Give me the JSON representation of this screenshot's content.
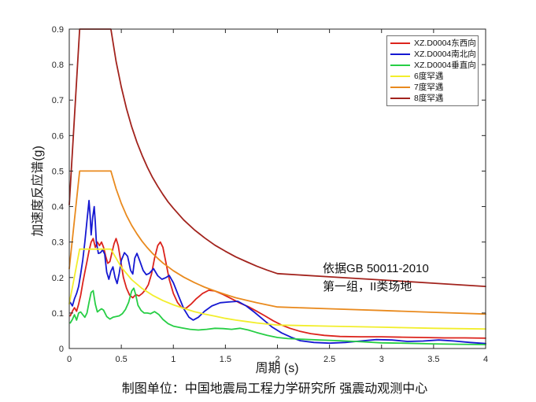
{
  "chart_data": {
    "type": "line",
    "title": "",
    "xlabel": "周期 (s)",
    "ylabel": "加速度反应谱(g)",
    "caption": "制图单位：中国地震局工程力学研究所 强震动观测中心",
    "annotation_line1": "依据GB 50011-2010",
    "annotation_line2": "第一组，II类场地",
    "xlim": [
      0,
      4
    ],
    "ylim": [
      0,
      0.9
    ],
    "xticks": [
      0,
      0.5,
      1,
      1.5,
      2,
      2.5,
      3,
      3.5,
      4
    ],
    "yticks": [
      0,
      0.1,
      0.2,
      0.3,
      0.4,
      0.5,
      0.6,
      0.7,
      0.8,
      0.9
    ],
    "grid": false,
    "legend_position": "upper-right",
    "axis_color": "#262626",
    "series": [
      {
        "name": "XZ.D0004东西向",
        "color": "#dc231c",
        "points": [
          [
            0.01,
            0.092
          ],
          [
            0.03,
            0.105
          ],
          [
            0.05,
            0.115
          ],
          [
            0.07,
            0.105
          ],
          [
            0.09,
            0.125
          ],
          [
            0.11,
            0.15
          ],
          [
            0.13,
            0.185
          ],
          [
            0.15,
            0.215
          ],
          [
            0.17,
            0.245
          ],
          [
            0.19,
            0.275
          ],
          [
            0.21,
            0.3
          ],
          [
            0.23,
            0.31
          ],
          [
            0.25,
            0.285
          ],
          [
            0.27,
            0.3
          ],
          [
            0.29,
            0.29
          ],
          [
            0.31,
            0.3
          ],
          [
            0.33,
            0.285
          ],
          [
            0.35,
            0.26
          ],
          [
            0.37,
            0.24
          ],
          [
            0.39,
            0.245
          ],
          [
            0.41,
            0.27
          ],
          [
            0.43,
            0.295
          ],
          [
            0.45,
            0.31
          ],
          [
            0.47,
            0.29
          ],
          [
            0.49,
            0.255
          ],
          [
            0.52,
            0.2
          ],
          [
            0.55,
            0.17
          ],
          [
            0.58,
            0.15
          ],
          [
            0.61,
            0.143
          ],
          [
            0.64,
            0.152
          ],
          [
            0.67,
            0.148
          ],
          [
            0.7,
            0.155
          ],
          [
            0.73,
            0.165
          ],
          [
            0.76,
            0.18
          ],
          [
            0.79,
            0.21
          ],
          [
            0.82,
            0.255
          ],
          [
            0.85,
            0.29
          ],
          [
            0.875,
            0.3
          ],
          [
            0.9,
            0.285
          ],
          [
            0.93,
            0.24
          ],
          [
            0.96,
            0.195
          ],
          [
            1.0,
            0.155
          ],
          [
            1.04,
            0.13
          ],
          [
            1.08,
            0.115
          ],
          [
            1.12,
            0.113
          ],
          [
            1.17,
            0.125
          ],
          [
            1.22,
            0.14
          ],
          [
            1.28,
            0.155
          ],
          [
            1.34,
            0.164
          ],
          [
            1.4,
            0.162
          ],
          [
            1.48,
            0.152
          ],
          [
            1.56,
            0.14
          ],
          [
            1.64,
            0.128
          ],
          [
            1.72,
            0.118
          ],
          [
            1.8,
            0.105
          ],
          [
            1.88,
            0.092
          ],
          [
            1.96,
            0.078
          ],
          [
            2.04,
            0.066
          ],
          [
            2.12,
            0.057
          ],
          [
            2.22,
            0.048
          ],
          [
            2.32,
            0.042
          ],
          [
            2.45,
            0.037
          ],
          [
            2.6,
            0.034
          ],
          [
            2.8,
            0.033
          ],
          [
            3.0,
            0.033
          ],
          [
            3.2,
            0.032
          ],
          [
            3.4,
            0.031
          ],
          [
            3.6,
            0.03
          ],
          [
            3.8,
            0.03
          ],
          [
            4.0,
            0.029
          ]
        ]
      },
      {
        "name": "XZ.D0004南北向",
        "color": "#1518d2",
        "points": [
          [
            0.01,
            0.13
          ],
          [
            0.03,
            0.12
          ],
          [
            0.05,
            0.14
          ],
          [
            0.07,
            0.155
          ],
          [
            0.09,
            0.175
          ],
          [
            0.11,
            0.21
          ],
          [
            0.13,
            0.25
          ],
          [
            0.15,
            0.3
          ],
          [
            0.17,
            0.36
          ],
          [
            0.19,
            0.417
          ],
          [
            0.2,
            0.375
          ],
          [
            0.21,
            0.32
          ],
          [
            0.225,
            0.37
          ],
          [
            0.24,
            0.4
          ],
          [
            0.25,
            0.355
          ],
          [
            0.26,
            0.3
          ],
          [
            0.28,
            0.268
          ],
          [
            0.3,
            0.27
          ],
          [
            0.32,
            0.278
          ],
          [
            0.34,
            0.266
          ],
          [
            0.36,
            0.215
          ],
          [
            0.38,
            0.195
          ],
          [
            0.4,
            0.218
          ],
          [
            0.42,
            0.23
          ],
          [
            0.44,
            0.2
          ],
          [
            0.46,
            0.183
          ],
          [
            0.48,
            0.212
          ],
          [
            0.5,
            0.248
          ],
          [
            0.53,
            0.27
          ],
          [
            0.56,
            0.26
          ],
          [
            0.59,
            0.22
          ],
          [
            0.61,
            0.21
          ],
          [
            0.63,
            0.255
          ],
          [
            0.65,
            0.268
          ],
          [
            0.68,
            0.245
          ],
          [
            0.71,
            0.22
          ],
          [
            0.74,
            0.208
          ],
          [
            0.77,
            0.212
          ],
          [
            0.81,
            0.225
          ],
          [
            0.85,
            0.205
          ],
          [
            0.89,
            0.195
          ],
          [
            0.93,
            0.2
          ],
          [
            0.96,
            0.206
          ],
          [
            1.0,
            0.185
          ],
          [
            1.05,
            0.148
          ],
          [
            1.1,
            0.112
          ],
          [
            1.15,
            0.088
          ],
          [
            1.19,
            0.08
          ],
          [
            1.24,
            0.088
          ],
          [
            1.3,
            0.105
          ],
          [
            1.37,
            0.12
          ],
          [
            1.45,
            0.129
          ],
          [
            1.53,
            0.131
          ],
          [
            1.62,
            0.133
          ],
          [
            1.7,
            0.12
          ],
          [
            1.78,
            0.102
          ],
          [
            1.87,
            0.08
          ],
          [
            1.95,
            0.06
          ],
          [
            2.04,
            0.044
          ],
          [
            2.13,
            0.032
          ],
          [
            2.22,
            0.022
          ],
          [
            2.35,
            0.017
          ],
          [
            2.5,
            0.015
          ],
          [
            2.65,
            0.017
          ],
          [
            2.8,
            0.021
          ],
          [
            2.95,
            0.025
          ],
          [
            3.1,
            0.024
          ],
          [
            3.25,
            0.02
          ],
          [
            3.4,
            0.021
          ],
          [
            3.55,
            0.024
          ],
          [
            3.7,
            0.021
          ],
          [
            3.85,
            0.017
          ],
          [
            4.0,
            0.014
          ]
        ]
      },
      {
        "name": "XZ.D0004垂直向",
        "color": "#27ce45",
        "points": [
          [
            0.01,
            0.072
          ],
          [
            0.03,
            0.082
          ],
          [
            0.05,
            0.095
          ],
          [
            0.07,
            0.08
          ],
          [
            0.09,
            0.1
          ],
          [
            0.11,
            0.103
          ],
          [
            0.13,
            0.095
          ],
          [
            0.15,
            0.088
          ],
          [
            0.17,
            0.1
          ],
          [
            0.19,
            0.13
          ],
          [
            0.21,
            0.158
          ],
          [
            0.23,
            0.163
          ],
          [
            0.25,
            0.125
          ],
          [
            0.27,
            0.103
          ],
          [
            0.29,
            0.108
          ],
          [
            0.31,
            0.112
          ],
          [
            0.33,
            0.108
          ],
          [
            0.36,
            0.09
          ],
          [
            0.39,
            0.083
          ],
          [
            0.42,
            0.088
          ],
          [
            0.45,
            0.09
          ],
          [
            0.48,
            0.092
          ],
          [
            0.51,
            0.098
          ],
          [
            0.54,
            0.11
          ],
          [
            0.57,
            0.13
          ],
          [
            0.6,
            0.162
          ],
          [
            0.62,
            0.17
          ],
          [
            0.64,
            0.15
          ],
          [
            0.66,
            0.122
          ],
          [
            0.69,
            0.107
          ],
          [
            0.72,
            0.1
          ],
          [
            0.75,
            0.1
          ],
          [
            0.78,
            0.098
          ],
          [
            0.82,
            0.104
          ],
          [
            0.86,
            0.096
          ],
          [
            0.9,
            0.082
          ],
          [
            0.95,
            0.07
          ],
          [
            1.0,
            0.063
          ],
          [
            1.08,
            0.058
          ],
          [
            1.16,
            0.054
          ],
          [
            1.24,
            0.052
          ],
          [
            1.32,
            0.054
          ],
          [
            1.4,
            0.057
          ],
          [
            1.48,
            0.056
          ],
          [
            1.56,
            0.054
          ],
          [
            1.64,
            0.057
          ],
          [
            1.72,
            0.052
          ],
          [
            1.8,
            0.045
          ],
          [
            1.9,
            0.037
          ],
          [
            2.0,
            0.031
          ],
          [
            2.1,
            0.028
          ],
          [
            2.25,
            0.026
          ],
          [
            2.4,
            0.024
          ],
          [
            2.6,
            0.022
          ],
          [
            2.8,
            0.019
          ],
          [
            3.0,
            0.016
          ],
          [
            3.2,
            0.015
          ],
          [
            3.5,
            0.013
          ],
          [
            3.75,
            0.012
          ],
          [
            4.0,
            0.011
          ]
        ]
      },
      {
        "name": "6度罕遇",
        "color": "#f2ee2c",
        "points": [
          [
            0,
            0.126
          ],
          [
            0.1,
            0.28
          ],
          [
            0.4,
            0.28
          ],
          [
            0.5,
            0.229
          ],
          [
            0.6,
            0.194
          ],
          [
            0.7,
            0.169
          ],
          [
            0.8,
            0.15
          ],
          [
            0.9,
            0.135
          ],
          [
            1.0,
            0.123
          ],
          [
            1.1,
            0.113
          ],
          [
            1.2,
            0.104
          ],
          [
            1.3,
            0.097
          ],
          [
            1.4,
            0.091
          ],
          [
            1.5,
            0.085
          ],
          [
            1.6,
            0.08
          ],
          [
            1.7,
            0.076
          ],
          [
            1.8,
            0.072
          ],
          [
            1.9,
            0.069
          ],
          [
            2.0,
            0.066
          ],
          [
            2.5,
            0.063
          ],
          [
            3.0,
            0.06
          ],
          [
            3.5,
            0.057
          ],
          [
            4.0,
            0.055
          ]
        ]
      },
      {
        "name": "7度罕遇",
        "color": "#e98a1e",
        "points": [
          [
            0,
            0.225
          ],
          [
            0.1,
            0.5
          ],
          [
            0.4,
            0.5
          ],
          [
            0.45,
            0.45
          ],
          [
            0.5,
            0.409
          ],
          [
            0.55,
            0.375
          ],
          [
            0.6,
            0.347
          ],
          [
            0.65,
            0.323
          ],
          [
            0.7,
            0.302
          ],
          [
            0.75,
            0.284
          ],
          [
            0.8,
            0.268
          ],
          [
            0.85,
            0.254
          ],
          [
            0.9,
            0.241
          ],
          [
            0.95,
            0.23
          ],
          [
            1.0,
            0.219
          ],
          [
            1.1,
            0.201
          ],
          [
            1.2,
            0.186
          ],
          [
            1.3,
            0.173
          ],
          [
            1.4,
            0.162
          ],
          [
            1.5,
            0.152
          ],
          [
            1.6,
            0.143
          ],
          [
            1.7,
            0.136
          ],
          [
            1.8,
            0.129
          ],
          [
            1.9,
            0.123
          ],
          [
            2.0,
            0.117
          ],
          [
            2.5,
            0.112
          ],
          [
            3.0,
            0.107
          ],
          [
            3.5,
            0.102
          ],
          [
            4.0,
            0.097
          ]
        ]
      },
      {
        "name": "8度罕遇",
        "color": "#a2231d",
        "points": [
          [
            0,
            0.405
          ],
          [
            0.1,
            0.9
          ],
          [
            0.4,
            0.9
          ],
          [
            0.45,
            0.809
          ],
          [
            0.5,
            0.737
          ],
          [
            0.55,
            0.676
          ],
          [
            0.6,
            0.625
          ],
          [
            0.65,
            0.581
          ],
          [
            0.7,
            0.544
          ],
          [
            0.75,
            0.511
          ],
          [
            0.8,
            0.482
          ],
          [
            0.85,
            0.457
          ],
          [
            0.9,
            0.434
          ],
          [
            0.95,
            0.413
          ],
          [
            1.0,
            0.395
          ],
          [
            1.1,
            0.362
          ],
          [
            1.2,
            0.335
          ],
          [
            1.3,
            0.312
          ],
          [
            1.4,
            0.291
          ],
          [
            1.5,
            0.274
          ],
          [
            1.6,
            0.258
          ],
          [
            1.7,
            0.245
          ],
          [
            1.8,
            0.232
          ],
          [
            1.9,
            0.221
          ],
          [
            2.0,
            0.211
          ],
          [
            2.5,
            0.202
          ],
          [
            3.0,
            0.193
          ],
          [
            3.5,
            0.184
          ],
          [
            4.0,
            0.175
          ]
        ]
      }
    ]
  }
}
